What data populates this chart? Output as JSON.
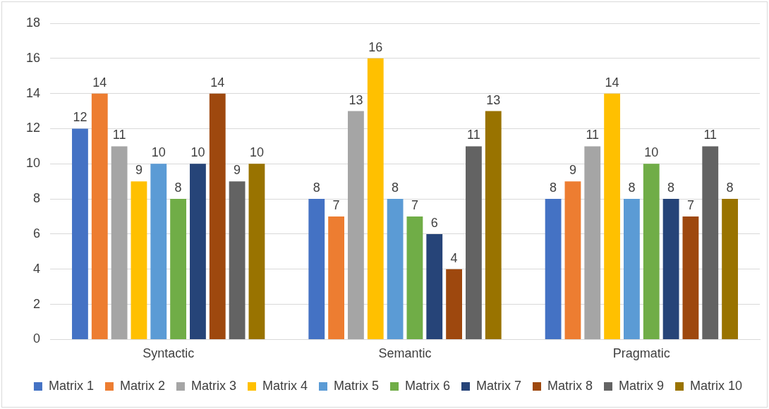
{
  "chart_data": {
    "type": "bar",
    "categories": [
      "Syntactic",
      "Semantic",
      "Pragmatic"
    ],
    "series": [
      {
        "name": "Matrix 1",
        "color": "#4472c4",
        "values": [
          12,
          8,
          8
        ]
      },
      {
        "name": "Matrix 2",
        "color": "#ed7d31",
        "values": [
          14,
          7,
          9
        ]
      },
      {
        "name": "Matrix 3",
        "color": "#a5a5a5",
        "values": [
          11,
          13,
          11
        ]
      },
      {
        "name": "Matrix 4",
        "color": "#ffc000",
        "values": [
          9,
          16,
          14
        ]
      },
      {
        "name": "Matrix 5",
        "color": "#5b9bd5",
        "values": [
          10,
          8,
          8
        ]
      },
      {
        "name": "Matrix 6",
        "color": "#70ad47",
        "values": [
          8,
          7,
          10
        ]
      },
      {
        "name": "Matrix 7",
        "color": "#264478",
        "values": [
          10,
          6,
          8
        ]
      },
      {
        "name": "Matrix 8",
        "color": "#9e480e",
        "values": [
          14,
          4,
          7
        ]
      },
      {
        "name": "Matrix 9",
        "color": "#636363",
        "values": [
          9,
          11,
          11
        ]
      },
      {
        "name": "Matrix 10",
        "color": "#997300",
        "values": [
          10,
          13,
          8
        ]
      }
    ],
    "ylim": [
      0,
      18
    ],
    "yticks": [
      0,
      2,
      4,
      6,
      8,
      10,
      12,
      14,
      16,
      18
    ],
    "grid": "y",
    "legend": "bottom",
    "data_labels": true
  }
}
